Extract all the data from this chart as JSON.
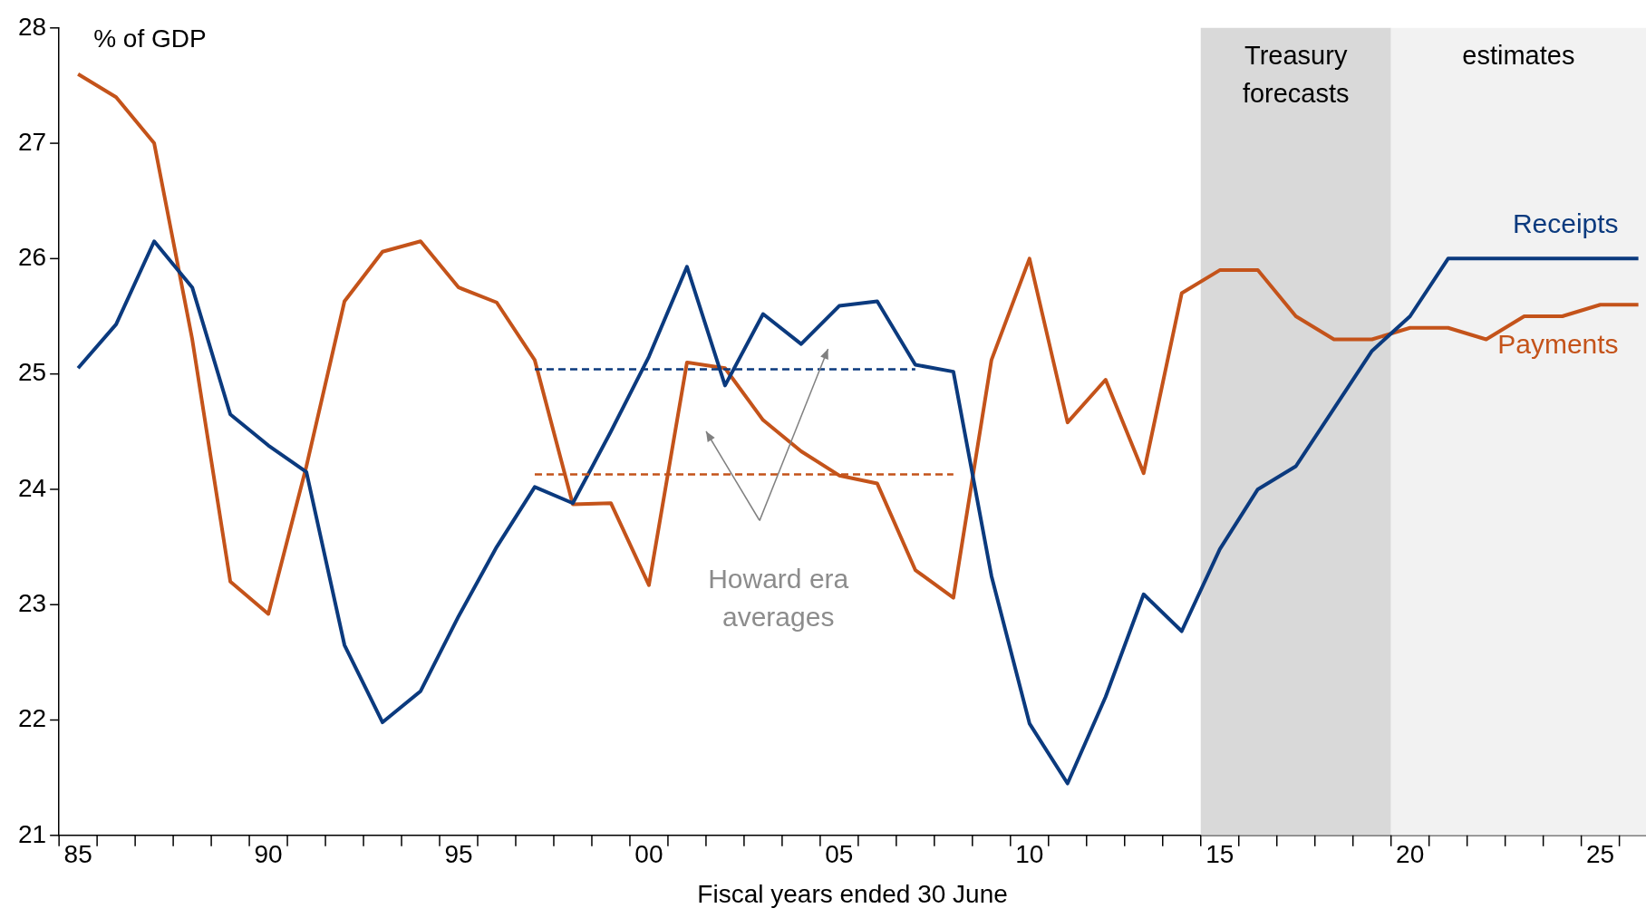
{
  "chart_data": {
    "type": "line",
    "xlabel": "Fiscal years ended 30 June",
    "ylabel": "% of GDP",
    "x": [
      1985,
      1986,
      1987,
      1988,
      1989,
      1990,
      1991,
      1992,
      1993,
      1994,
      1995,
      1996,
      1997,
      1998,
      1999,
      2000,
      2001,
      2002,
      2003,
      2004,
      2005,
      2006,
      2007,
      2008,
      2009,
      2010,
      2011,
      2012,
      2013,
      2014,
      2015,
      2016,
      2017,
      2018,
      2019,
      2020,
      2021,
      2022,
      2023,
      2024,
      2025,
      2026
    ],
    "series": [
      {
        "name": "Receipts",
        "color": "#0b3a7e",
        "values": [
          25.05,
          25.43,
          26.15,
          25.75,
          24.65,
          24.38,
          24.15,
          22.65,
          21.98,
          22.25,
          22.9,
          23.5,
          24.02,
          23.88,
          24.5,
          25.15,
          25.93,
          24.9,
          25.52,
          25.26,
          25.59,
          25.63,
          25.08,
          25.02,
          23.25,
          21.97,
          21.45,
          22.2,
          23.09,
          22.77,
          23.48,
          24.0,
          24.2,
          24.7,
          25.2,
          25.5,
          26.0,
          26.0,
          26.0,
          26.0,
          26.0,
          26.0
        ]
      },
      {
        "name": "Payments",
        "color": "#c4531a",
        "values": [
          27.6,
          27.4,
          27.0,
          25.3,
          23.2,
          22.92,
          24.2,
          25.63,
          26.06,
          26.15,
          25.75,
          25.62,
          25.12,
          23.87,
          23.88,
          23.17,
          25.1,
          25.05,
          24.6,
          24.33,
          24.12,
          24.05,
          23.3,
          23.06,
          25.12,
          26.0,
          24.58,
          24.95,
          24.14,
          25.7,
          25.9,
          25.9,
          25.5,
          25.3,
          25.3,
          25.4,
          25.4,
          25.3,
          25.5,
          25.5,
          25.6,
          25.6
        ]
      },
      {
        "color": "#0b3a7e",
        "line_style": "dashed",
        "values": [
          null,
          null,
          null,
          null,
          null,
          null,
          null,
          null,
          null,
          null,
          null,
          null,
          25.04,
          25.04,
          25.04,
          25.04,
          25.04,
          25.04,
          25.04,
          25.04,
          25.04,
          25.04,
          25.04,
          null,
          null,
          null,
          null,
          null,
          null,
          null,
          null,
          null,
          null,
          null,
          null,
          null,
          null,
          null,
          null,
          null,
          null,
          null
        ]
      },
      {
        "color": "#c4531a",
        "line_style": "dashed",
        "values": [
          null,
          null,
          null,
          null,
          null,
          null,
          null,
          null,
          null,
          null,
          null,
          null,
          24.13,
          24.13,
          24.13,
          24.13,
          24.13,
          24.13,
          24.13,
          24.13,
          24.13,
          24.13,
          24.13,
          24.13,
          null,
          null,
          null,
          null,
          null,
          null,
          null,
          null,
          null,
          null,
          null,
          null,
          null,
          null,
          null,
          null,
          null,
          null
        ]
      }
    ],
    "xlim": [
      1984.5,
      2026.2
    ],
    "xticks": [
      {
        "value": 1984.5,
        "label": null
      },
      {
        "value": 1985,
        "label": "85"
      },
      {
        "value": 1985.5,
        "label": null
      },
      {
        "value": 1986.5,
        "label": null
      },
      {
        "value": 1987.5,
        "label": null
      },
      {
        "value": 1988.5,
        "label": null
      },
      {
        "value": 1989.5,
        "label": null
      },
      {
        "value": 1990,
        "label": "90"
      },
      {
        "value": 1990.5,
        "label": null
      },
      {
        "value": 1991.5,
        "label": null
      },
      {
        "value": 1992.5,
        "label": null
      },
      {
        "value": 1993.5,
        "label": null
      },
      {
        "value": 1994.5,
        "label": null
      },
      {
        "value": 1995,
        "label": "95"
      },
      {
        "value": 1995.5,
        "label": null
      },
      {
        "value": 1996.5,
        "label": null
      },
      {
        "value": 1997.5,
        "label": null
      },
      {
        "value": 1998.5,
        "label": null
      },
      {
        "value": 1999.5,
        "label": null
      },
      {
        "value": 2000,
        "label": "00"
      },
      {
        "value": 2000.5,
        "label": null
      },
      {
        "value": 2001.5,
        "label": null
      },
      {
        "value": 2002.5,
        "label": null
      },
      {
        "value": 2003.5,
        "label": null
      },
      {
        "value": 2004.5,
        "label": null
      },
      {
        "value": 2005,
        "label": "05"
      },
      {
        "value": 2005.5,
        "label": null
      },
      {
        "value": 2006.5,
        "label": null
      },
      {
        "value": 2007.5,
        "label": null
      },
      {
        "value": 2008.5,
        "label": null
      },
      {
        "value": 2009.5,
        "label": null
      },
      {
        "value": 2010,
        "label": "10"
      },
      {
        "value": 2010.5,
        "label": null
      },
      {
        "value": 2011.5,
        "label": null
      },
      {
        "value": 2012.5,
        "label": null
      },
      {
        "value": 2013.5,
        "label": null
      },
      {
        "value": 2014.5,
        "label": null
      },
      {
        "value": 2015,
        "label": "15"
      },
      {
        "value": 2015.5,
        "label": null
      },
      {
        "value": 2016.5,
        "label": null
      },
      {
        "value": 2017.5,
        "label": null
      },
      {
        "value": 2018.5,
        "label": null
      },
      {
        "value": 2019.5,
        "label": null
      },
      {
        "value": 2020,
        "label": "20"
      },
      {
        "value": 2020.5,
        "label": null
      },
      {
        "value": 2021.5,
        "label": null
      },
      {
        "value": 2022.5,
        "label": null
      },
      {
        "value": 2023.5,
        "label": null
      },
      {
        "value": 2024.5,
        "label": null
      },
      {
        "value": 2025,
        "label": "25"
      },
      {
        "value": 2025.5,
        "label": null
      }
    ],
    "ylim": [
      21,
      28
    ],
    "yticks": [
      21,
      22,
      23,
      24,
      25,
      26,
      27,
      28
    ],
    "bands": [
      {
        "axis": "x",
        "from": 2014.5,
        "to": 2019.5,
        "label": "Treasury forecasts",
        "color": "#d9d9d9"
      },
      {
        "axis": "x",
        "from": 2019.5,
        "to": 2026.2,
        "label": "estimates",
        "color": "#f2f2f2"
      }
    ],
    "annotations": [
      "Howard era averages"
    ],
    "grid": false,
    "legend": false,
    "marker": "none",
    "line_style": "solid"
  }
}
